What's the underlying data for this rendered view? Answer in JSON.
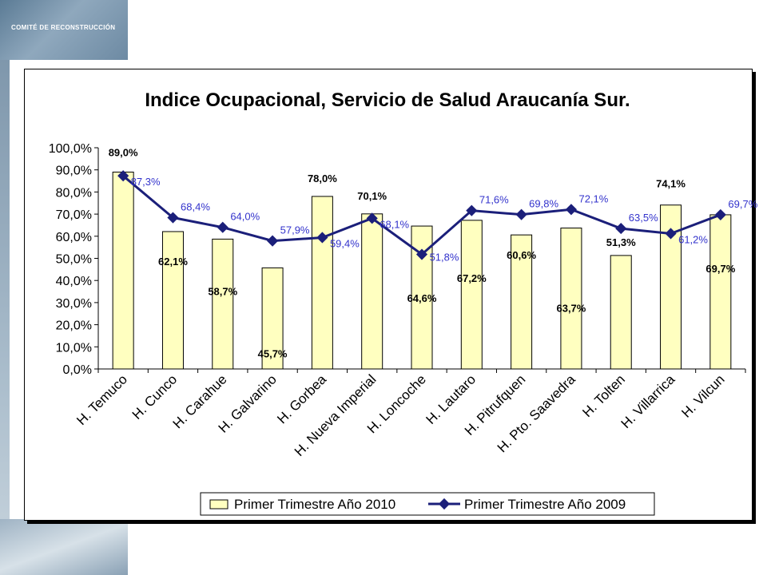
{
  "header": {
    "org_label": "COMITÉ DE RECONSTRUCCIÓN"
  },
  "chart_data": {
    "type": "bar",
    "title": "Indice Ocupacional, Servicio de Salud Araucanía Sur.",
    "categories": [
      "H. Temuco",
      "H. Cunco",
      "H. Carahue",
      "H. Galvarino",
      "H. Gorbea",
      "H. Nueva Imperial",
      "H. Loncoche",
      "H. Lautaro",
      "H. Pitrufquen",
      "H. Pto. Saavedra",
      "H. Tolten",
      "H. Villarrica",
      "H. Vilcun"
    ],
    "series": [
      {
        "name": "Primer Trimestre Año 2010",
        "kind": "bar",
        "color": "#FFFFC0",
        "values": [
          89.0,
          62.1,
          58.7,
          45.7,
          78.0,
          70.1,
          64.6,
          67.2,
          60.6,
          63.7,
          51.3,
          74.1,
          69.7
        ],
        "labels": [
          "89,0%",
          "62,1%",
          "58,7%",
          "45,7%",
          "78,0%",
          "70,1%",
          "64,6%",
          "67,2%",
          "60,6%",
          "63,7%",
          "51,3%",
          "74,1%",
          "69,7%"
        ]
      },
      {
        "name": "Primer Trimestre Año 2009",
        "kind": "line",
        "color": "#1B1F7A",
        "values": [
          87.3,
          68.4,
          64.0,
          57.9,
          59.4,
          68.1,
          51.8,
          71.6,
          69.8,
          72.1,
          63.5,
          61.2,
          69.7
        ],
        "labels": [
          "87,3%",
          "68,4%",
          "64,0%",
          "57,9%",
          "59,4%",
          "68,1%",
          "51,8%",
          "71,6%",
          "69,8%",
          "72,1%",
          "63,5%",
          "61,2%",
          "69,7%"
        ]
      }
    ],
    "ylim": [
      0,
      100
    ],
    "yticks": [
      "0,0%",
      "10,0%",
      "20,0%",
      "30,0%",
      "40,0%",
      "50,0%",
      "60,0%",
      "70,0%",
      "80,0%",
      "90,0%",
      "100,0%"
    ],
    "legend_position": "bottom-right",
    "grid": false
  }
}
